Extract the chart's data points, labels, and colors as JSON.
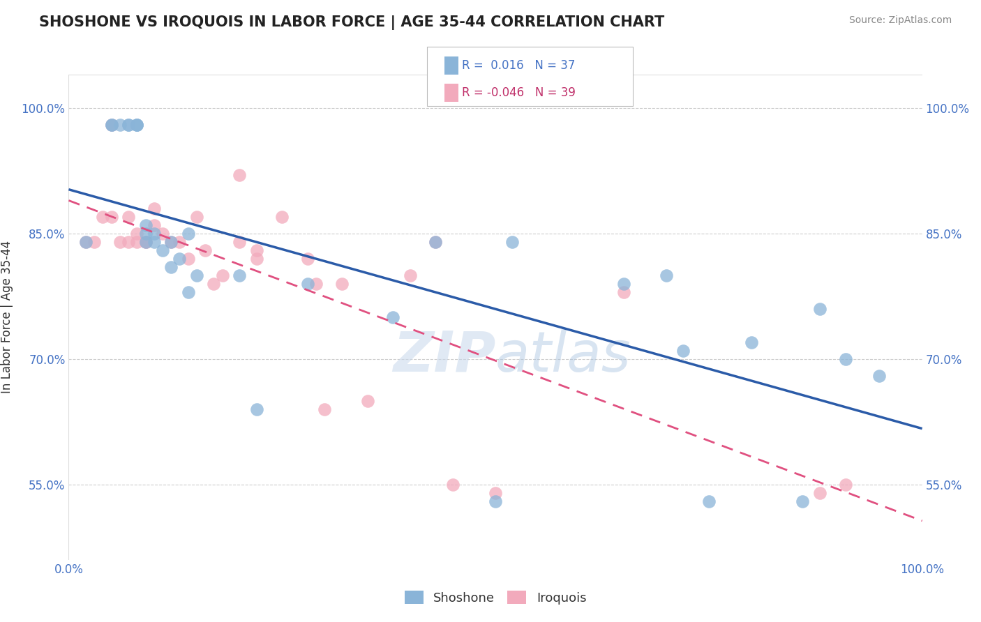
{
  "title": "SHOSHONE VS IROQUOIS IN LABOR FORCE | AGE 35-44 CORRELATION CHART",
  "source_text": "Source: ZipAtlas.com",
  "ylabel": "In Labor Force | Age 35-44",
  "xlim": [
    0.0,
    1.0
  ],
  "ylim": [
    0.46,
    1.04
  ],
  "ytick_positions": [
    0.55,
    0.7,
    0.85,
    1.0
  ],
  "ytick_labels": [
    "55.0%",
    "70.0%",
    "85.0%",
    "100.0%"
  ],
  "shoshone_color": "#8AB4D8",
  "iroquois_color": "#F2AABC",
  "shoshone_line_color": "#2B5BA8",
  "iroquois_line_color": "#E05080",
  "background_color": "#ffffff",
  "grid_color": "#cccccc",
  "watermark_zip": "ZIP",
  "watermark_atlas": "atlas",
  "shoshone_x": [
    0.02,
    0.05,
    0.05,
    0.06,
    0.07,
    0.07,
    0.08,
    0.08,
    0.08,
    0.09,
    0.09,
    0.09,
    0.1,
    0.1,
    0.11,
    0.12,
    0.12,
    0.13,
    0.14,
    0.14,
    0.15,
    0.2,
    0.22,
    0.28,
    0.38,
    0.43,
    0.5,
    0.52,
    0.65,
    0.7,
    0.72,
    0.75,
    0.8,
    0.86,
    0.88,
    0.91,
    0.95
  ],
  "shoshone_y": [
    0.84,
    0.98,
    0.98,
    0.98,
    0.98,
    0.98,
    0.98,
    0.98,
    0.98,
    0.84,
    0.85,
    0.86,
    0.85,
    0.84,
    0.83,
    0.84,
    0.81,
    0.82,
    0.85,
    0.78,
    0.8,
    0.8,
    0.64,
    0.79,
    0.75,
    0.84,
    0.53,
    0.84,
    0.79,
    0.8,
    0.71,
    0.53,
    0.72,
    0.53,
    0.76,
    0.7,
    0.68
  ],
  "iroquois_x": [
    0.02,
    0.03,
    0.04,
    0.05,
    0.05,
    0.06,
    0.07,
    0.07,
    0.08,
    0.08,
    0.09,
    0.09,
    0.1,
    0.1,
    0.11,
    0.12,
    0.13,
    0.14,
    0.15,
    0.16,
    0.17,
    0.18,
    0.2,
    0.2,
    0.22,
    0.22,
    0.25,
    0.28,
    0.29,
    0.3,
    0.32,
    0.35,
    0.4,
    0.43,
    0.45,
    0.5,
    0.65,
    0.88,
    0.91
  ],
  "iroquois_y": [
    0.84,
    0.84,
    0.87,
    0.87,
    0.98,
    0.84,
    0.84,
    0.87,
    0.85,
    0.84,
    0.84,
    0.84,
    0.86,
    0.88,
    0.85,
    0.84,
    0.84,
    0.82,
    0.87,
    0.83,
    0.79,
    0.8,
    0.92,
    0.84,
    0.82,
    0.83,
    0.87,
    0.82,
    0.79,
    0.64,
    0.79,
    0.65,
    0.8,
    0.84,
    0.55,
    0.54,
    0.78,
    0.54,
    0.55
  ]
}
